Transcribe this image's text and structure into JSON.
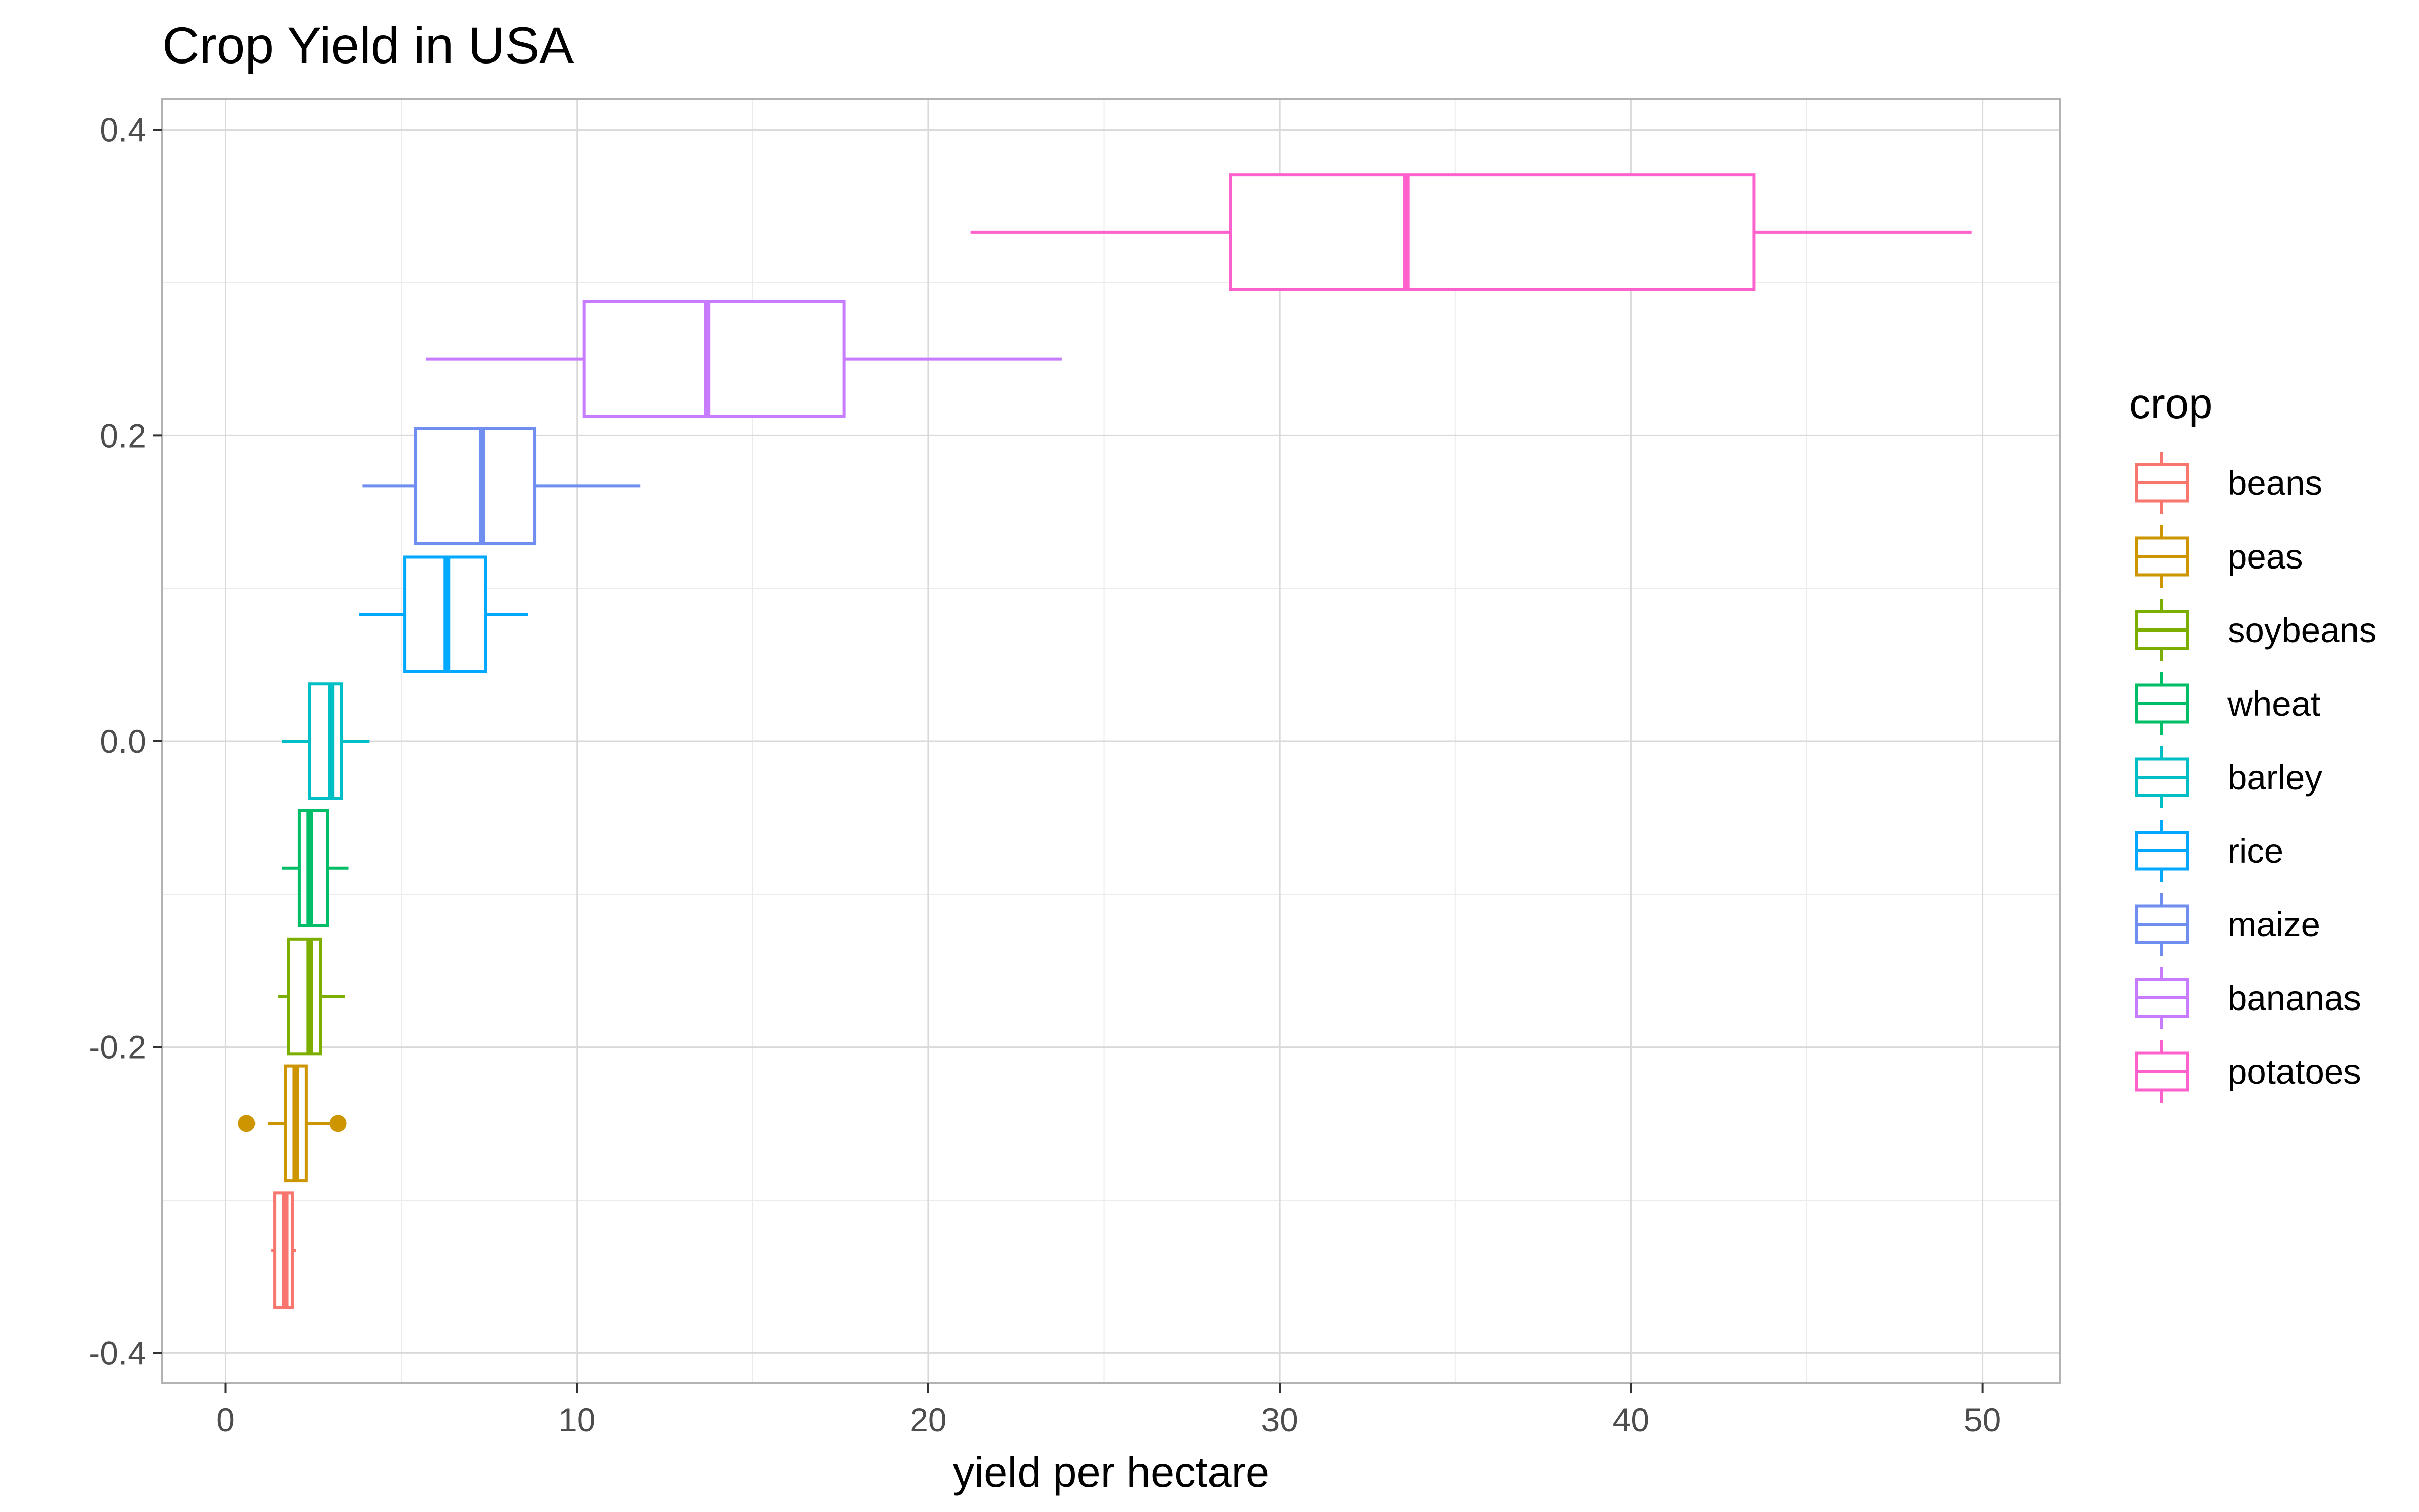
{
  "chart_data": {
    "type": "boxplot",
    "title": "Crop Yield in USA",
    "xlabel": "yield per hectare",
    "ylabel": "",
    "xlim": [
      -1.8,
      52.2
    ],
    "ylim": [
      -0.42,
      0.42
    ],
    "x_ticks": [
      0,
      10,
      20,
      30,
      40,
      50
    ],
    "y_ticks": [
      -0.4,
      -0.2,
      0.0,
      0.2,
      0.4
    ],
    "x_tick_labels": [
      "0",
      "10",
      "20",
      "30",
      "40",
      "50"
    ],
    "y_tick_labels": [
      "-0.4",
      "-0.2",
      "0.0",
      "0.2",
      "0.4"
    ],
    "grid": true,
    "legend_title": "crop",
    "legend_position": "right",
    "series": [
      {
        "name": "beans",
        "color": "#F8766D",
        "center": -0.333,
        "whisker_low": 1.3,
        "q1": 1.4,
        "median": 1.7,
        "q3": 1.9,
        "whisker_high": 2.0,
        "outliers": []
      },
      {
        "name": "peas",
        "color": "#CD9600",
        "center": -0.25,
        "whisker_low": 1.2,
        "q1": 1.7,
        "median": 2.0,
        "q3": 2.3,
        "whisker_high": 3.0,
        "outliers": [
          0.6,
          3.2
        ]
      },
      {
        "name": "soybeans",
        "color": "#7CAE00",
        "center": -0.167,
        "whisker_low": 1.5,
        "q1": 1.8,
        "median": 2.4,
        "q3": 2.7,
        "whisker_high": 3.4,
        "outliers": []
      },
      {
        "name": "wheat",
        "color": "#00BE67",
        "center": -0.083,
        "whisker_low": 1.6,
        "q1": 2.1,
        "median": 2.4,
        "q3": 2.9,
        "whisker_high": 3.5,
        "outliers": []
      },
      {
        "name": "barley",
        "color": "#00BFC4",
        "center": 0.0,
        "whisker_low": 1.6,
        "q1": 2.4,
        "median": 3.0,
        "q3": 3.3,
        "whisker_high": 4.1,
        "outliers": []
      },
      {
        "name": "rice",
        "color": "#00A9FF",
        "center": 0.083,
        "whisker_low": 3.8,
        "q1": 5.1,
        "median": 6.3,
        "q3": 7.4,
        "whisker_high": 8.6,
        "outliers": []
      },
      {
        "name": "maize",
        "color": "#6F8EF0",
        "center": 0.167,
        "whisker_low": 3.9,
        "q1": 5.4,
        "median": 7.3,
        "q3": 8.8,
        "whisker_high": 11.8,
        "outliers": []
      },
      {
        "name": "bananas",
        "color": "#C77CFF",
        "center": 0.25,
        "whisker_low": 5.7,
        "q1": 10.2,
        "median": 13.7,
        "q3": 17.6,
        "whisker_high": 23.8,
        "outliers": []
      },
      {
        "name": "potatoes",
        "color": "#FF61CC",
        "center": 0.333,
        "whisker_low": 21.2,
        "q1": 28.6,
        "median": 33.6,
        "q3": 43.5,
        "whisker_high": 49.7,
        "outliers": []
      }
    ]
  }
}
